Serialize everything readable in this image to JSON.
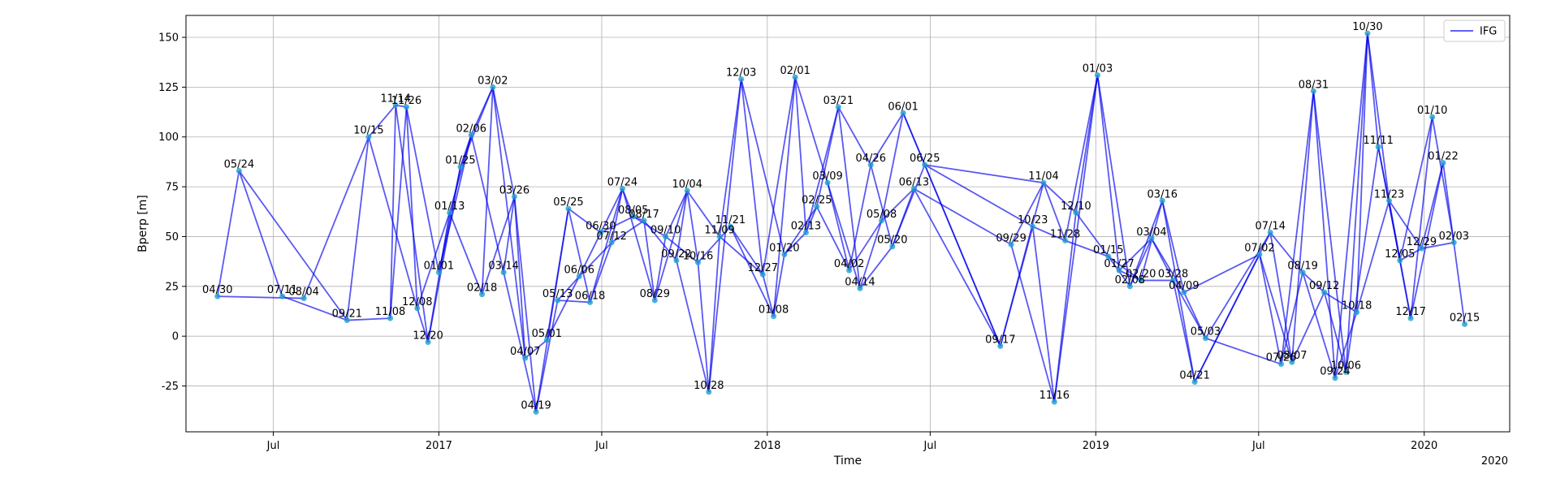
{
  "chart_data": {
    "type": "line",
    "xlabel": "Time",
    "ylabel": "Bperp [m]",
    "xlim": [
      "2016-03-26",
      "2020-04-05"
    ],
    "ylim": [
      -48,
      161
    ],
    "grid": true,
    "legend": {
      "entries": [
        "IFG"
      ],
      "placement": "top-right"
    },
    "line_color": "#0000ee",
    "marker_color": "#1f9fd0",
    "x_ticks": [
      {
        "date": "2016-07-01",
        "label": "Jul"
      },
      {
        "date": "2017-01-01",
        "label": "2017"
      },
      {
        "date": "2017-07-01",
        "label": "Jul"
      },
      {
        "date": "2018-01-01",
        "label": "2018"
      },
      {
        "date": "2018-07-01",
        "label": "Jul"
      },
      {
        "date": "2019-01-01",
        "label": "2019"
      },
      {
        "date": "2019-07-01",
        "label": "Jul"
      },
      {
        "date": "2020-01-01",
        "label": "2020"
      }
    ],
    "x_offset_label": "2020",
    "y_ticks": [
      -25,
      0,
      25,
      50,
      75,
      100,
      125,
      150
    ],
    "points": [
      {
        "date": "2016-04-30",
        "label": "04/30",
        "y": 20
      },
      {
        "date": "2016-05-24",
        "label": "05/24",
        "y": 83
      },
      {
        "date": "2016-07-11",
        "label": "07/11",
        "y": 20
      },
      {
        "date": "2016-08-04",
        "label": "08/04",
        "y": 19
      },
      {
        "date": "2016-09-21",
        "label": "09/21",
        "y": 8
      },
      {
        "date": "2016-10-15",
        "label": "10/15",
        "y": 100
      },
      {
        "date": "2016-11-08",
        "label": "11/08",
        "y": 9
      },
      {
        "date": "2016-11-14",
        "label": "11/14",
        "y": 116
      },
      {
        "date": "2016-11-26",
        "label": "11/26",
        "y": 115
      },
      {
        "date": "2016-12-08",
        "label": "12/08",
        "y": 14
      },
      {
        "date": "2016-12-20",
        "label": "12/20",
        "y": -3
      },
      {
        "date": "2017-01-01",
        "label": "01/01",
        "y": 32
      },
      {
        "date": "2017-01-13",
        "label": "01/13",
        "y": 62
      },
      {
        "date": "2017-01-25",
        "label": "01/25",
        "y": 85
      },
      {
        "date": "2017-02-06",
        "label": "02/06",
        "y": 101
      },
      {
        "date": "2017-02-18",
        "label": "02/18",
        "y": 21
      },
      {
        "date": "2017-03-02",
        "label": "03/02",
        "y": 125
      },
      {
        "date": "2017-03-14",
        "label": "03/14",
        "y": 32
      },
      {
        "date": "2017-03-26",
        "label": "03/26",
        "y": 70
      },
      {
        "date": "2017-04-07",
        "label": "04/07",
        "y": -11
      },
      {
        "date": "2017-04-19",
        "label": "04/19",
        "y": -38
      },
      {
        "date": "2017-05-01",
        "label": "05/01",
        "y": -2
      },
      {
        "date": "2017-05-13",
        "label": "05/13",
        "y": 18
      },
      {
        "date": "2017-05-25",
        "label": "05/25",
        "y": 64
      },
      {
        "date": "2017-06-06",
        "label": "06/06",
        "y": 30
      },
      {
        "date": "2017-06-18",
        "label": "06/18",
        "y": 17
      },
      {
        "date": "2017-06-30",
        "label": "06/30",
        "y": 52
      },
      {
        "date": "2017-07-12",
        "label": "07/12",
        "y": 47
      },
      {
        "date": "2017-07-24",
        "label": "07/24",
        "y": 74
      },
      {
        "date": "2017-08-05",
        "label": "08/05",
        "y": 60
      },
      {
        "date": "2017-08-17",
        "label": "08/17",
        "y": 58
      },
      {
        "date": "2017-08-29",
        "label": "08/29",
        "y": 18
      },
      {
        "date": "2017-09-10",
        "label": "09/10",
        "y": 50
      },
      {
        "date": "2017-09-22",
        "label": "09/22",
        "y": 38
      },
      {
        "date": "2017-10-04",
        "label": "10/04",
        "y": 73
      },
      {
        "date": "2017-10-16",
        "label": "10/16",
        "y": 37
      },
      {
        "date": "2017-10-28",
        "label": "10/28",
        "y": -28
      },
      {
        "date": "2017-11-09",
        "label": "11/09",
        "y": 50
      },
      {
        "date": "2017-11-21",
        "label": "11/21",
        "y": 55
      },
      {
        "date": "2017-12-03",
        "label": "12/03",
        "y": 129
      },
      {
        "date": "2017-12-27",
        "label": "12/27",
        "y": 31
      },
      {
        "date": "2018-01-08",
        "label": "01/08",
        "y": 10
      },
      {
        "date": "2018-01-20",
        "label": "01/20",
        "y": 41
      },
      {
        "date": "2018-02-01",
        "label": "02/01",
        "y": 130
      },
      {
        "date": "2018-02-13",
        "label": "02/13",
        "y": 52
      },
      {
        "date": "2018-02-25",
        "label": "02/25",
        "y": 65
      },
      {
        "date": "2018-03-09",
        "label": "03/09",
        "y": 77
      },
      {
        "date": "2018-03-21",
        "label": "03/21",
        "y": 115
      },
      {
        "date": "2018-04-02",
        "label": "04/02",
        "y": 33
      },
      {
        "date": "2018-04-14",
        "label": "04/14",
        "y": 24
      },
      {
        "date": "2018-04-26",
        "label": "04/26",
        "y": 86
      },
      {
        "date": "2018-05-08",
        "label": "05/08",
        "y": 58
      },
      {
        "date": "2018-05-20",
        "label": "05/20",
        "y": 45
      },
      {
        "date": "2018-06-01",
        "label": "06/01",
        "y": 112
      },
      {
        "date": "2018-06-13",
        "label": "06/13",
        "y": 74
      },
      {
        "date": "2018-06-25",
        "label": "06/25",
        "y": 86
      },
      {
        "date": "2018-09-17",
        "label": "09/17",
        "y": -5
      },
      {
        "date": "2018-09-29",
        "label": "09/29",
        "y": 46
      },
      {
        "date": "2018-10-23",
        "label": "10/23",
        "y": 55
      },
      {
        "date": "2018-11-04",
        "label": "11/04",
        "y": 77
      },
      {
        "date": "2018-11-16",
        "label": "11/16",
        "y": -33
      },
      {
        "date": "2018-11-28",
        "label": "11/28",
        "y": 48
      },
      {
        "date": "2018-12-10",
        "label": "12/10",
        "y": 62
      },
      {
        "date": "2019-01-03",
        "label": "01/03",
        "y": 131
      },
      {
        "date": "2019-01-15",
        "label": "01/15",
        "y": 40
      },
      {
        "date": "2019-01-27",
        "label": "01/27",
        "y": 33
      },
      {
        "date": "2019-02-08",
        "label": "02/08",
        "y": 25
      },
      {
        "date": "2019-02-20",
        "label": "02/20",
        "y": 28
      },
      {
        "date": "2019-03-04",
        "label": "03/04",
        "y": 49
      },
      {
        "date": "2019-03-16",
        "label": "03/16",
        "y": 68
      },
      {
        "date": "2019-03-28",
        "label": "03/28",
        "y": 28
      },
      {
        "date": "2019-04-09",
        "label": "04/09",
        "y": 22
      },
      {
        "date": "2019-04-21",
        "label": "04/21",
        "y": -23
      },
      {
        "date": "2019-05-03",
        "label": "05/03",
        "y": -1
      },
      {
        "date": "2019-07-02",
        "label": "07/02",
        "y": 41
      },
      {
        "date": "2019-07-14",
        "label": "07/14",
        "y": 52
      },
      {
        "date": "2019-07-26",
        "label": "07/26",
        "y": -14
      },
      {
        "date": "2019-08-07",
        "label": "08/07",
        "y": -13
      },
      {
        "date": "2019-08-19",
        "label": "08/19",
        "y": 32
      },
      {
        "date": "2019-08-31",
        "label": "08/31",
        "y": 123
      },
      {
        "date": "2019-09-12",
        "label": "09/12",
        "y": 22
      },
      {
        "date": "2019-09-24",
        "label": "09/24",
        "y": -21
      },
      {
        "date": "2019-10-06",
        "label": "10/06",
        "y": -18
      },
      {
        "date": "2019-10-18",
        "label": "10/18",
        "y": 12
      },
      {
        "date": "2019-10-30",
        "label": "10/30",
        "y": 152
      },
      {
        "date": "2019-11-11",
        "label": "11/11",
        "y": 95
      },
      {
        "date": "2019-11-23",
        "label": "11/23",
        "y": 68
      },
      {
        "date": "2019-12-05",
        "label": "12/05",
        "y": 38
      },
      {
        "date": "2019-12-17",
        "label": "12/17",
        "y": 9
      },
      {
        "date": "2019-12-29",
        "label": "12/29",
        "y": 44
      },
      {
        "date": "2020-01-10",
        "label": "01/10",
        "y": 110
      },
      {
        "date": "2020-01-22",
        "label": "01/22",
        "y": 87
      },
      {
        "date": "2020-02-03",
        "label": "02/03",
        "y": 47
      },
      {
        "date": "2020-02-15",
        "label": "02/15",
        "y": 6
      }
    ],
    "edges": [
      [
        0,
        1
      ],
      [
        0,
        3
      ],
      [
        1,
        2
      ],
      [
        1,
        4
      ],
      [
        2,
        4
      ],
      [
        3,
        5
      ],
      [
        4,
        5
      ],
      [
        4,
        6
      ],
      [
        5,
        7
      ],
      [
        5,
        9
      ],
      [
        6,
        7
      ],
      [
        6,
        8
      ],
      [
        7,
        8
      ],
      [
        7,
        10
      ],
      [
        8,
        9
      ],
      [
        8,
        11
      ],
      [
        9,
        10
      ],
      [
        9,
        12
      ],
      [
        10,
        12
      ],
      [
        10,
        13
      ],
      [
        11,
        13
      ],
      [
        11,
        14
      ],
      [
        12,
        14
      ],
      [
        12,
        15
      ],
      [
        13,
        14
      ],
      [
        13,
        16
      ],
      [
        14,
        16
      ],
      [
        14,
        17
      ],
      [
        15,
        16
      ],
      [
        15,
        18
      ],
      [
        16,
        18
      ],
      [
        16,
        19
      ],
      [
        17,
        18
      ],
      [
        17,
        20
      ],
      [
        18,
        19
      ],
      [
        18,
        20
      ],
      [
        19,
        21
      ],
      [
        20,
        22
      ],
      [
        20,
        23
      ],
      [
        21,
        23
      ],
      [
        21,
        24
      ],
      [
        22,
        24
      ],
      [
        22,
        25
      ],
      [
        23,
        25
      ],
      [
        23,
        26
      ],
      [
        24,
        26
      ],
      [
        24,
        27
      ],
      [
        25,
        27
      ],
      [
        25,
        28
      ],
      [
        26,
        28
      ],
      [
        26,
        29
      ],
      [
        27,
        28
      ],
      [
        27,
        30
      ],
      [
        28,
        29
      ],
      [
        28,
        31
      ],
      [
        29,
        30
      ],
      [
        29,
        32
      ],
      [
        30,
        31
      ],
      [
        30,
        33
      ],
      [
        31,
        34
      ],
      [
        31,
        32
      ],
      [
        32,
        34
      ],
      [
        32,
        35
      ],
      [
        33,
        34
      ],
      [
        33,
        36
      ],
      [
        34,
        35
      ],
      [
        34,
        37
      ],
      [
        35,
        36
      ],
      [
        35,
        38
      ],
      [
        36,
        37
      ],
      [
        36,
        39
      ],
      [
        37,
        39
      ],
      [
        37,
        40
      ],
      [
        38,
        40
      ],
      [
        38,
        41
      ],
      [
        39,
        40
      ],
      [
        39,
        42
      ],
      [
        40,
        41
      ],
      [
        40,
        43
      ],
      [
        41,
        43
      ],
      [
        41,
        42
      ],
      [
        42,
        44
      ],
      [
        42,
        45
      ],
      [
        43,
        44
      ],
      [
        43,
        46
      ],
      [
        44,
        45
      ],
      [
        44,
        47
      ],
      [
        45,
        47
      ],
      [
        45,
        48
      ],
      [
        46,
        48
      ],
      [
        46,
        49
      ],
      [
        47,
        49
      ],
      [
        47,
        50
      ],
      [
        48,
        50
      ],
      [
        48,
        51
      ],
      [
        49,
        51
      ],
      [
        49,
        52
      ],
      [
        50,
        52
      ],
      [
        50,
        53
      ],
      [
        51,
        53
      ],
      [
        51,
        54
      ],
      [
        52,
        54
      ],
      [
        52,
        55
      ],
      [
        53,
        55
      ],
      [
        53,
        56
      ],
      [
        54,
        56
      ],
      [
        54,
        57
      ],
      [
        55,
        56
      ],
      [
        55,
        58
      ],
      [
        55,
        59
      ],
      [
        56,
        58
      ],
      [
        56,
        59
      ],
      [
        57,
        59
      ],
      [
        57,
        60
      ],
      [
        58,
        60
      ],
      [
        58,
        61
      ],
      [
        59,
        61
      ],
      [
        59,
        62
      ],
      [
        60,
        62
      ],
      [
        60,
        63
      ],
      [
        61,
        63
      ],
      [
        61,
        64
      ],
      [
        62,
        63
      ],
      [
        62,
        64
      ],
      [
        63,
        65
      ],
      [
        63,
        66
      ],
      [
        64,
        66
      ],
      [
        64,
        67
      ],
      [
        65,
        67
      ],
      [
        65,
        68
      ],
      [
        66,
        68
      ],
      [
        66,
        69
      ],
      [
        67,
        69
      ],
      [
        67,
        70
      ],
      [
        68,
        70
      ],
      [
        68,
        71
      ],
      [
        69,
        71
      ],
      [
        69,
        72
      ],
      [
        70,
        72
      ],
      [
        70,
        73
      ],
      [
        71,
        73
      ],
      [
        71,
        74
      ],
      [
        72,
        74
      ],
      [
        72,
        75
      ],
      [
        73,
        75
      ],
      [
        73,
        76
      ],
      [
        74,
        76
      ],
      [
        74,
        77
      ],
      [
        75,
        77
      ],
      [
        75,
        78
      ],
      [
        76,
        78
      ],
      [
        76,
        79
      ],
      [
        77,
        79
      ],
      [
        77,
        80
      ],
      [
        78,
        80
      ],
      [
        78,
        81
      ],
      [
        79,
        81
      ],
      [
        79,
        82
      ],
      [
        80,
        82
      ],
      [
        80,
        83
      ],
      [
        81,
        83
      ],
      [
        81,
        84
      ],
      [
        82,
        84
      ],
      [
        82,
        85
      ],
      [
        83,
        84
      ],
      [
        83,
        86
      ],
      [
        84,
        85
      ],
      [
        84,
        86
      ],
      [
        85,
        87
      ],
      [
        85,
        88
      ],
      [
        86,
        88
      ],
      [
        86,
        89
      ],
      [
        87,
        89
      ],
      [
        87,
        90
      ],
      [
        88,
        90
      ],
      [
        88,
        91
      ],
      [
        89,
        91
      ],
      [
        89,
        92
      ],
      [
        90,
        92
      ],
      [
        91,
        93
      ]
    ]
  }
}
